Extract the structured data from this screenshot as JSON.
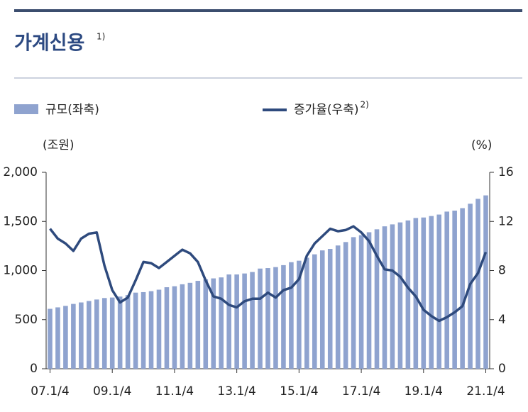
{
  "chart_data": {
    "type": "bar_line",
    "title": "가계신용",
    "title_note": "1)",
    "y_label": "(조원)",
    "y2_label": "(%)",
    "categories": [
      "07.1/4",
      null,
      null,
      null,
      null,
      null,
      null,
      null,
      "09.1/4",
      null,
      null,
      null,
      null,
      null,
      null,
      null,
      "11.1/4",
      null,
      null,
      null,
      null,
      null,
      null,
      null,
      "13.1/4",
      null,
      null,
      null,
      null,
      null,
      null,
      null,
      "15.1/4",
      null,
      null,
      null,
      null,
      null,
      null,
      null,
      "17.1/4",
      null,
      null,
      null,
      null,
      null,
      null,
      null,
      "19.1/4",
      null,
      null,
      null,
      null,
      null,
      null,
      null,
      "21.1/4"
    ],
    "series": [
      {
        "name": "규모(좌축)",
        "color": "#8fa3cf",
        "type": "bar",
        "values": [
          610,
          625,
          640,
          660,
          675,
          690,
          705,
          720,
          725,
          735,
          750,
          775,
          780,
          790,
          805,
          830,
          840,
          860,
          875,
          895,
          910,
          920,
          930,
          960,
          960,
          970,
          985,
          1020,
          1025,
          1035,
          1055,
          1085,
          1100,
          1130,
          1165,
          1205,
          1220,
          1255,
          1290,
          1340,
          1360,
          1390,
          1420,
          1450,
          1470,
          1490,
          1510,
          1535,
          1540,
          1555,
          1570,
          1600,
          1610,
          1635,
          1680,
          1730,
          1765
        ]
      },
      {
        "name": "증가율(우축)",
        "note": "2)",
        "color": "#2e4a7d",
        "type": "line",
        "axis": "y2",
        "values": [
          11.4,
          10.6,
          10.2,
          9.6,
          10.6,
          11.0,
          11.1,
          8.4,
          6.4,
          5.4,
          5.8,
          7.2,
          8.7,
          8.6,
          8.2,
          8.7,
          9.2,
          9.7,
          9.4,
          8.7,
          7.2,
          5.9,
          5.7,
          5.2,
          5.0,
          5.5,
          5.7,
          5.7,
          6.2,
          5.8,
          6.4,
          6.6,
          7.3,
          9.2,
          10.2,
          10.8,
          11.4,
          11.2,
          11.3,
          11.6,
          11.1,
          10.4,
          9.2,
          8.1,
          8.0,
          7.5,
          6.6,
          5.9,
          4.8,
          4.3,
          3.9,
          4.2,
          4.6,
          5.1,
          6.9,
          7.8,
          9.5
        ]
      }
    ],
    "ylim": [
      0,
      2000
    ],
    "yticks": [
      0,
      500,
      {
        "value": 1000,
        "label": "1,000"
      },
      {
        "value": 1500,
        "label": "1,500"
      },
      {
        "value": 2000,
        "label": "2,000"
      }
    ],
    "y2lim": [
      0,
      16
    ],
    "y2ticks": [
      0,
      4,
      8,
      12,
      16
    ]
  }
}
